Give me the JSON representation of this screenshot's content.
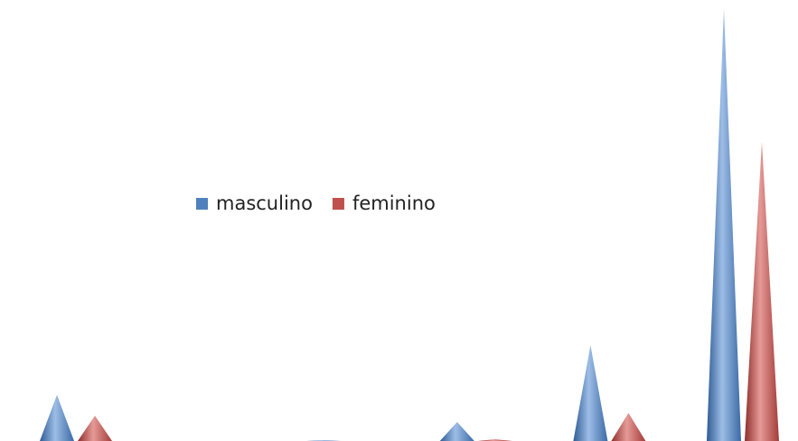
{
  "chart_data": {
    "type": "cone",
    "categories": [
      null,
      null,
      null,
      null,
      null,
      null
    ],
    "series": [
      {
        "name": "masculino",
        "color": "#4f81bd",
        "values": [
          51,
          0,
          1,
          21,
          106,
          478
        ]
      },
      {
        "name": "feminino",
        "color": "#c0504d",
        "values": [
          28,
          0,
          0,
          2,
          31,
          331
        ]
      }
    ],
    "ylim": [
      0,
      480
    ]
  }
}
